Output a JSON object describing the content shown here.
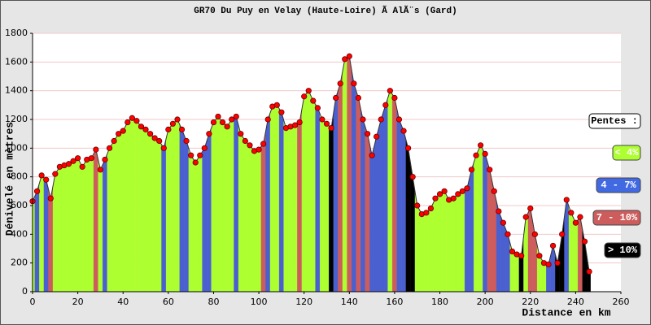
{
  "chart_data": {
    "type": "area",
    "title": "GR70 Du Puy en Velay (Haute-Loire) Ã  AlÃ¨s (Gard)",
    "x_label": "Distance en km",
    "y_label": "Dénivelé en mètres",
    "xlim": [
      0,
      260
    ],
    "ylim": [
      0,
      1800
    ],
    "xticks": [
      0,
      20,
      40,
      60,
      80,
      100,
      120,
      140,
      160,
      180,
      200,
      220,
      240,
      260
    ],
    "yticks": [
      0,
      200,
      400,
      600,
      800,
      1000,
      1200,
      1400,
      1600,
      1800
    ],
    "grid": true,
    "marker_color": "#ff0000",
    "x": [
      0,
      2,
      4,
      6,
      8,
      10,
      12,
      14,
      16,
      18,
      20,
      22,
      24,
      26,
      28,
      30,
      32,
      34,
      36,
      38,
      40,
      42,
      44,
      46,
      48,
      50,
      52,
      54,
      56,
      58,
      60,
      62,
      64,
      66,
      68,
      70,
      72,
      74,
      76,
      78,
      80,
      82,
      84,
      86,
      88,
      90,
      92,
      94,
      96,
      98,
      100,
      102,
      104,
      106,
      108,
      110,
      112,
      114,
      116,
      118,
      120,
      122,
      124,
      126,
      128,
      130,
      132,
      134,
      136,
      138,
      140,
      142,
      144,
      146,
      148,
      150,
      152,
      154,
      156,
      158,
      160,
      162,
      164,
      166,
      168,
      170,
      172,
      174,
      176,
      178,
      180,
      182,
      184,
      186,
      188,
      190,
      192,
      194,
      196,
      198,
      200,
      202,
      204,
      206,
      208,
      210,
      212,
      214,
      216,
      218,
      220,
      222,
      224,
      226,
      228,
      230,
      232,
      234,
      236,
      238,
      240,
      242,
      244,
      246
    ],
    "series": [
      {
        "values": [
          630,
          700,
          810,
          780,
          650,
          820,
          870,
          880,
          890,
          910,
          930,
          870,
          920,
          930,
          990,
          850,
          920,
          1000,
          1050,
          1100,
          1120,
          1180,
          1210,
          1190,
          1150,
          1130,
          1100,
          1070,
          1050,
          1000,
          1130,
          1170,
          1200,
          1130,
          1050,
          950,
          900,
          950,
          1000,
          1100,
          1180,
          1220,
          1180,
          1150,
          1200,
          1220,
          1100,
          1050,
          1020,
          980,
          990,
          1030,
          1200,
          1290,
          1300,
          1250,
          1140,
          1150,
          1160,
          1180,
          1360,
          1400,
          1330,
          1280,
          1200,
          1170,
          1140,
          1350,
          1450,
          1620,
          1640,
          1450,
          1350,
          1200,
          1100,
          950,
          1080,
          1200,
          1300,
          1400,
          1350,
          1200,
          1120,
          1000,
          800,
          600,
          540,
          550,
          580,
          650,
          680,
          700,
          640,
          650,
          680,
          700,
          720,
          850,
          950,
          1020,
          960,
          850,
          700,
          560,
          480,
          400,
          280,
          260,
          250,
          520,
          580,
          400,
          250,
          200,
          190,
          320,
          200,
          400,
          640,
          550,
          480,
          520,
          350,
          140
        ],
        "colors": [
          "#adff2f",
          "#4a5fd0",
          "#adff2f",
          "#4a5fd0",
          "#cd5c5c",
          "#adff2f",
          "#adff2f",
          "#adff2f",
          "#adff2f",
          "#adff2f",
          "#adff2f",
          "#adff2f",
          "#adff2f",
          "#adff2f",
          "#cd5c5c",
          "#adff2f",
          "#4a5fd0",
          "#adff2f",
          "#adff2f",
          "#adff2f",
          "#adff2f",
          "#adff2f",
          "#adff2f",
          "#adff2f",
          "#adff2f",
          "#adff2f",
          "#adff2f",
          "#adff2f",
          "#adff2f",
          "#4a5fd0",
          "#adff2f",
          "#adff2f",
          "#adff2f",
          "#4a5fd0",
          "#4a5fd0",
          "#adff2f",
          "#adff2f",
          "#adff2f",
          "#4a5fd0",
          "#4a5fd0",
          "#adff2f",
          "#adff2f",
          "#adff2f",
          "#adff2f",
          "#adff2f",
          "#4a5fd0",
          "#adff2f",
          "#adff2f",
          "#adff2f",
          "#adff2f",
          "#adff2f",
          "#cd5c5c",
          "#4a5fd0",
          "#adff2f",
          "#adff2f",
          "#4a5fd0",
          "#adff2f",
          "#adff2f",
          "#adff2f",
          "#cd5c5c",
          "#adff2f",
          "#adff2f",
          "#adff2f",
          "#4a5fd0",
          "#adff2f",
          "#adff2f",
          "#000000",
          "#4a5fd0",
          "#cd5c5c",
          "#adff2f",
          "#cd5c5c",
          "#4a5fd0",
          "#cd5c5c",
          "#4a5fd0",
          "#cd5c5c",
          "#4a5fd0",
          "#4a5fd0",
          "#4a5fd0",
          "#4a5fd0",
          "#adff2f",
          "#cd5c5c",
          "#4a5fd0",
          "#4a5fd0",
          "#000000",
          "#000000",
          "#adff2f",
          "#adff2f",
          "#adff2f",
          "#adff2f",
          "#adff2f",
          "#adff2f",
          "#adff2f",
          "#adff2f",
          "#adff2f",
          "#adff2f",
          "#adff2f",
          "#4a5fd0",
          "#4a5fd0",
          "#adff2f",
          "#adff2f",
          "#4a5fd0",
          "#cd5c5c",
          "#cd5c5c",
          "#4a5fd0",
          "#4a5fd0",
          "#4a5fd0",
          "#adff2f",
          "#adff2f",
          "#000000",
          "#adff2f",
          "#cd5c5c",
          "#cd5c5c",
          "#adff2f",
          "#adff2f",
          "#4a5fd0",
          "#4a5fd0",
          "#000000",
          "#000000",
          "#4a5fd0",
          "#adff2f",
          "#adff2f",
          "#cd5c5c",
          "#000000",
          "#000000"
        ]
      }
    ],
    "legend": {
      "title": "Pentes :",
      "items": [
        {
          "label": "< 4%",
          "color": "#adff2f"
        },
        {
          "label": "4 - 7%",
          "color": "#4169e1"
        },
        {
          "label": "7 - 10%",
          "color": "#cd5c5c"
        },
        {
          "label": "> 10%",
          "color": "#000000"
        }
      ]
    }
  }
}
